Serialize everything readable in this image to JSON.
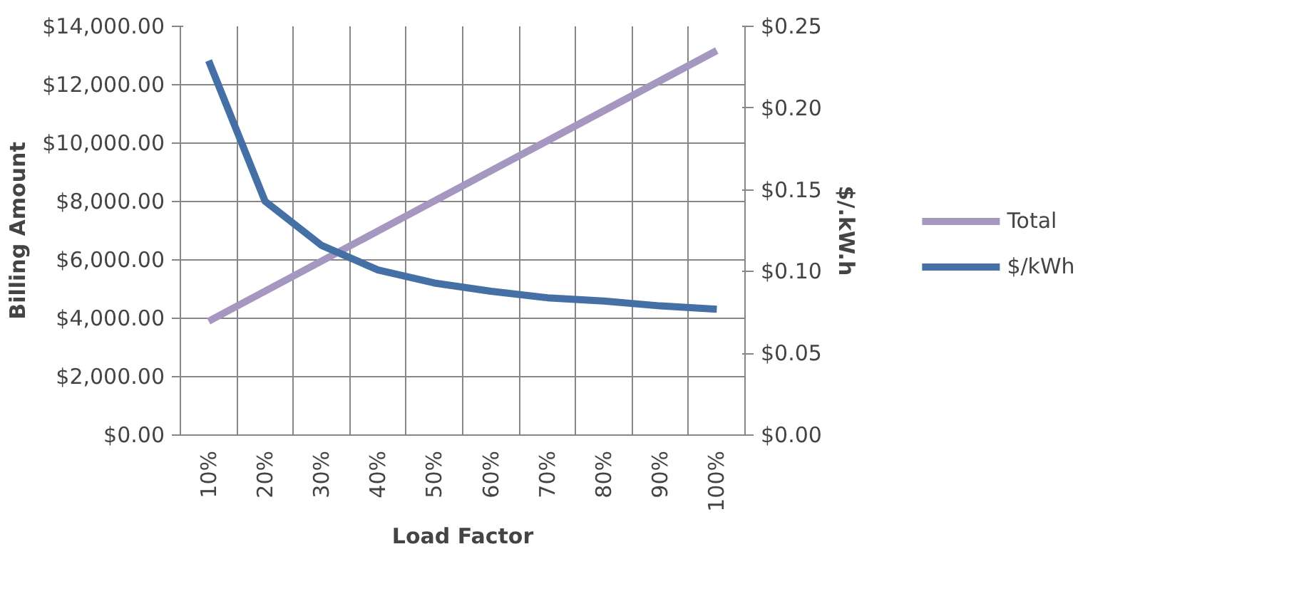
{
  "chart_data": {
    "type": "line",
    "xlabel": "Load Factor",
    "ylabel": "Billing Amount",
    "y2label": "$/.kW.h",
    "categories": [
      "10%",
      "20%",
      "30%",
      "40%",
      "50%",
      "60%",
      "70%",
      "80%",
      "90%",
      "100%"
    ],
    "series": [
      {
        "name": "Total",
        "color": "#a597bf",
        "values": [
          3900,
          4930,
          5960,
          6990,
          8020,
          9050,
          10080,
          11110,
          12140,
          13170
        ]
      },
      {
        "name": "$/kWh",
        "color": "#4470a6",
        "axis": "y2",
        "values": [
          0.229,
          0.143,
          0.116,
          0.101,
          0.093,
          0.088,
          0.084,
          0.082,
          0.079,
          0.077
        ]
      }
    ],
    "ylim": [
      0,
      14000
    ],
    "yticks": [
      {
        "value": 0,
        "label": "$0.00"
      },
      {
        "value": 2000,
        "label": "$2,000.00"
      },
      {
        "value": 4000,
        "label": "$4,000.00"
      },
      {
        "value": 6000,
        "label": "$6,000.00"
      },
      {
        "value": 8000,
        "label": "$8,000.00"
      },
      {
        "value": 10000,
        "label": "$10,000.00"
      },
      {
        "value": 12000,
        "label": "$12,000.00"
      },
      {
        "value": 14000,
        "label": "$14,000.00"
      }
    ],
    "y2lim": [
      0,
      0.25
    ],
    "y2ticks": [
      {
        "value": 0,
        "label": "$0.00"
      },
      {
        "value": 0.05,
        "label": "$0.05"
      },
      {
        "value": 0.1,
        "label": "$0.10"
      },
      {
        "value": 0.15,
        "label": "$0.15"
      },
      {
        "value": 0.2,
        "label": "$0.20"
      },
      {
        "value": 0.25,
        "label": "$0.25"
      }
    ],
    "grid": true,
    "legend": "right",
    "marker": "none",
    "line_style": "solid"
  }
}
